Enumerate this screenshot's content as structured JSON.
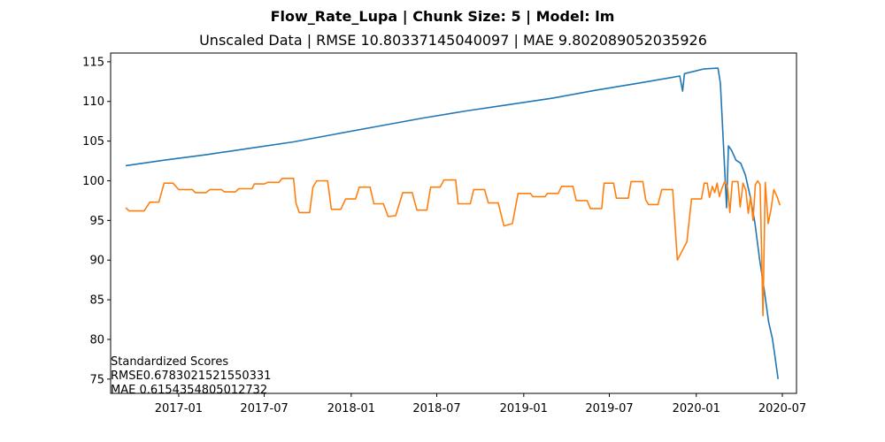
{
  "chart_data": {
    "type": "line",
    "suptitle": "Flow_Rate_Lupa | Chunk Size: 5 | Model: lm",
    "title": "Unscaled Data | RMSE 10.80337145040097 | MAE 9.802089052035926",
    "xlabel": "",
    "ylabel": "",
    "xlim": [
      "2016-08-10",
      "2020-07-31"
    ],
    "ylim": [
      73.2,
      116.1
    ],
    "grid": false,
    "x_ticks": [
      "2017-01",
      "2017-07",
      "2018-01",
      "2018-07",
      "2019-01",
      "2019-07",
      "2020-01",
      "2020-07"
    ],
    "y_ticks": [
      75,
      80,
      85,
      90,
      95,
      100,
      105,
      110,
      115
    ],
    "annotation": [
      "Standardized Scores",
      "RMSE0.6783021521550331",
      "MAE 0.6154354805012732"
    ],
    "series": [
      {
        "color": "#1f77b4",
        "points": [
          [
            "2016-09-11",
            101.9
          ],
          [
            "2016-12-01",
            102.6
          ],
          [
            "2017-03-01",
            103.3
          ],
          [
            "2017-06-01",
            104.1
          ],
          [
            "2017-09-01",
            104.9
          ],
          [
            "2017-12-01",
            105.9
          ],
          [
            "2018-03-01",
            106.9
          ],
          [
            "2018-06-01",
            107.9
          ],
          [
            "2018-09-01",
            108.8
          ],
          [
            "2018-12-01",
            109.6
          ],
          [
            "2019-03-01",
            110.4
          ],
          [
            "2019-06-01",
            111.4
          ],
          [
            "2019-09-01",
            112.3
          ],
          [
            "2019-11-27",
            113.2
          ],
          [
            "2019-12-03",
            111.3
          ],
          [
            "2019-12-07",
            113.5
          ],
          [
            "2020-01-18",
            114.1
          ],
          [
            "2020-02-16",
            114.2
          ],
          [
            "2020-02-21",
            112.3
          ],
          [
            "2020-03-05",
            96.6
          ],
          [
            "2020-03-09",
            104.4
          ],
          [
            "2020-03-16",
            103.8
          ],
          [
            "2020-03-25",
            102.6
          ],
          [
            "2020-04-04",
            102.2
          ],
          [
            "2020-04-14",
            100.7
          ],
          [
            "2020-04-24",
            98.0
          ],
          [
            "2020-05-04",
            94.7
          ],
          [
            "2020-05-14",
            90.1
          ],
          [
            "2020-05-24",
            86.1
          ],
          [
            "2020-06-02",
            82.2
          ],
          [
            "2020-06-10",
            80.1
          ],
          [
            "2020-06-16",
            77.6
          ],
          [
            "2020-06-22",
            75.0
          ]
        ]
      },
      {
        "color": "#ff7f0e",
        "points": [
          [
            "2016-09-11",
            96.6
          ],
          [
            "2016-09-18",
            96.2
          ],
          [
            "2016-10-20",
            96.2
          ],
          [
            "2016-11-01",
            97.3
          ],
          [
            "2016-11-20",
            97.3
          ],
          [
            "2016-12-01",
            99.7
          ],
          [
            "2016-12-20",
            99.7
          ],
          [
            "2017-01-01",
            98.9
          ],
          [
            "2017-01-30",
            98.9
          ],
          [
            "2017-02-05",
            98.5
          ],
          [
            "2017-02-28",
            98.5
          ],
          [
            "2017-03-08",
            98.9
          ],
          [
            "2017-04-01",
            98.9
          ],
          [
            "2017-04-08",
            98.6
          ],
          [
            "2017-05-01",
            98.6
          ],
          [
            "2017-05-08",
            99.0
          ],
          [
            "2017-06-05",
            99.0
          ],
          [
            "2017-06-10",
            99.6
          ],
          [
            "2017-07-01",
            99.6
          ],
          [
            "2017-07-08",
            99.8
          ],
          [
            "2017-08-01",
            99.8
          ],
          [
            "2017-08-08",
            100.3
          ],
          [
            "2017-09-01",
            100.3
          ],
          [
            "2017-09-06",
            97.2
          ],
          [
            "2017-09-13",
            96.0
          ],
          [
            "2017-10-05",
            96.0
          ],
          [
            "2017-10-12",
            99.2
          ],
          [
            "2017-10-20",
            100.0
          ],
          [
            "2017-11-12",
            100.0
          ],
          [
            "2017-11-20",
            96.4
          ],
          [
            "2017-12-10",
            96.4
          ],
          [
            "2017-12-20",
            97.7
          ],
          [
            "2018-01-10",
            97.7
          ],
          [
            "2018-01-18",
            99.2
          ],
          [
            "2018-02-10",
            99.2
          ],
          [
            "2018-02-18",
            97.1
          ],
          [
            "2018-03-10",
            97.1
          ],
          [
            "2018-03-20",
            95.5
          ],
          [
            "2018-04-05",
            95.6
          ],
          [
            "2018-04-20",
            98.5
          ],
          [
            "2018-05-10",
            98.5
          ],
          [
            "2018-05-20",
            96.3
          ],
          [
            "2018-06-10",
            96.3
          ],
          [
            "2018-06-18",
            99.2
          ],
          [
            "2018-07-08",
            99.2
          ],
          [
            "2018-07-16",
            100.1
          ],
          [
            "2018-08-10",
            100.1
          ],
          [
            "2018-08-15",
            97.1
          ],
          [
            "2018-09-10",
            97.1
          ],
          [
            "2018-09-17",
            98.9
          ],
          [
            "2018-10-10",
            98.9
          ],
          [
            "2018-10-18",
            97.2
          ],
          [
            "2018-11-08",
            97.2
          ],
          [
            "2018-11-20",
            94.3
          ],
          [
            "2018-12-08",
            94.6
          ],
          [
            "2018-12-20",
            98.4
          ],
          [
            "2019-01-15",
            98.4
          ],
          [
            "2019-01-20",
            98.0
          ],
          [
            "2019-02-15",
            98.0
          ],
          [
            "2019-02-20",
            98.4
          ],
          [
            "2019-03-15",
            98.4
          ],
          [
            "2019-03-22",
            99.3
          ],
          [
            "2019-04-15",
            99.3
          ],
          [
            "2019-04-22",
            97.5
          ],
          [
            "2019-05-15",
            97.5
          ],
          [
            "2019-05-22",
            96.5
          ],
          [
            "2019-06-15",
            96.5
          ],
          [
            "2019-06-20",
            99.7
          ],
          [
            "2019-07-10",
            99.7
          ],
          [
            "2019-07-16",
            97.8
          ],
          [
            "2019-08-10",
            97.8
          ],
          [
            "2019-08-16",
            99.9
          ],
          [
            "2019-09-10",
            99.9
          ],
          [
            "2019-09-16",
            97.6
          ],
          [
            "2019-09-22",
            97.0
          ],
          [
            "2019-10-12",
            97.0
          ],
          [
            "2019-10-20",
            98.9
          ],
          [
            "2019-11-12",
            98.9
          ],
          [
            "2019-11-22",
            90.0
          ],
          [
            "2019-12-12",
            92.3
          ],
          [
            "2019-12-22",
            97.7
          ],
          [
            "2020-01-12",
            97.7
          ],
          [
            "2020-01-18",
            99.7
          ],
          [
            "2020-01-24",
            99.7
          ],
          [
            "2020-01-29",
            97.9
          ],
          [
            "2020-02-04",
            99.3
          ],
          [
            "2020-02-09",
            98.5
          ],
          [
            "2020-02-14",
            99.7
          ],
          [
            "2020-02-19",
            98.0
          ],
          [
            "2020-02-24",
            99.0
          ],
          [
            "2020-03-01",
            99.9
          ],
          [
            "2020-03-07",
            99.2
          ],
          [
            "2020-03-12",
            96.0
          ],
          [
            "2020-03-17",
            99.9
          ],
          [
            "2020-03-29",
            99.9
          ],
          [
            "2020-04-03",
            96.7
          ],
          [
            "2020-04-09",
            99.7
          ],
          [
            "2020-04-15",
            98.8
          ],
          [
            "2020-04-20",
            95.9
          ],
          [
            "2020-04-25",
            98.0
          ],
          [
            "2020-04-30",
            95.0
          ],
          [
            "2020-05-05",
            99.5
          ],
          [
            "2020-05-10",
            100.0
          ],
          [
            "2020-05-15",
            99.5
          ],
          [
            "2020-05-21",
            83.0
          ],
          [
            "2020-05-26",
            99.8
          ],
          [
            "2020-06-01",
            94.6
          ],
          [
            "2020-06-07",
            96.4
          ],
          [
            "2020-06-13",
            98.9
          ],
          [
            "2020-06-20",
            98.0
          ],
          [
            "2020-06-26",
            96.9
          ]
        ]
      }
    ]
  }
}
